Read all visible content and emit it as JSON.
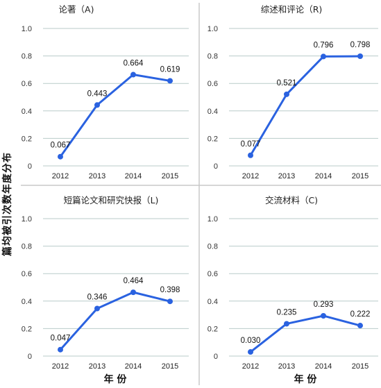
{
  "figure": {
    "ylabel": "篇均被引次数年度分布",
    "xlabel": "年 份"
  },
  "chart_data": [
    {
      "type": "line",
      "title": "论著（A)",
      "categories": [
        "2012",
        "2013",
        "2014",
        "2015"
      ],
      "values": [
        0.067,
        0.443,
        0.664,
        0.619
      ],
      "value_labels": [
        "0.067",
        "0.443",
        "0.664",
        "0.619"
      ],
      "yticks": [
        "0",
        "0.2",
        "0.4",
        "0.6",
        "0.8",
        "1.0"
      ],
      "ylim": [
        0,
        1.0
      ],
      "grid": true,
      "color": "#2a62e0"
    },
    {
      "type": "line",
      "title": "综述和评论（R)",
      "categories": [
        "2012",
        "2013",
        "2014",
        "2015"
      ],
      "values": [
        0.077,
        0.521,
        0.796,
        0.798
      ],
      "value_labels": [
        "0.077",
        "0.521",
        "0.796",
        "0.798"
      ],
      "yticks": [
        "0",
        "0.2",
        "0.4",
        "0.6",
        "0.8",
        "1.0"
      ],
      "ylim": [
        0,
        1.0
      ],
      "grid": true,
      "color": "#2a62e0"
    },
    {
      "type": "line",
      "title": "短篇论文和研究快报（L)",
      "categories": [
        "2012",
        "2013",
        "2014",
        "2015"
      ],
      "values": [
        0.047,
        0.346,
        0.464,
        0.398
      ],
      "value_labels": [
        "0.047",
        "0.346",
        "0.464",
        "0.398"
      ],
      "yticks": [
        "0",
        "0.2",
        "0.4",
        "0.6",
        "0.8",
        "1.0"
      ],
      "ylim": [
        0,
        1.0
      ],
      "grid": true,
      "color": "#2a62e0"
    },
    {
      "type": "line",
      "title": "交流材料（C)",
      "categories": [
        "2012",
        "2013",
        "2014",
        "2015"
      ],
      "values": [
        0.03,
        0.235,
        0.293,
        0.222
      ],
      "value_labels": [
        "0.030",
        "0.235",
        "0.293",
        "0.222"
      ],
      "yticks": [
        "0",
        "0.2",
        "0.4",
        "0.6",
        "0.8",
        "1.0"
      ],
      "ylim": [
        0,
        1.0
      ],
      "grid": true,
      "color": "#2a62e0"
    }
  ]
}
